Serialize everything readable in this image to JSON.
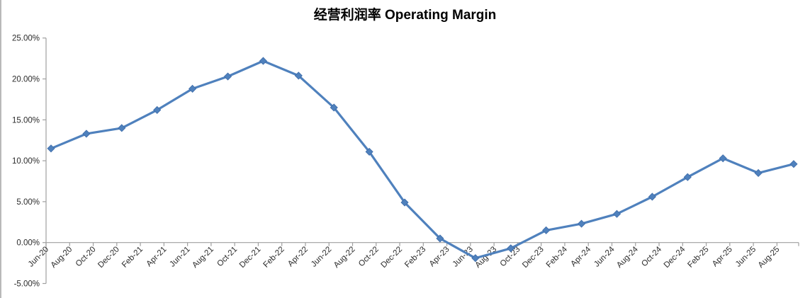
{
  "window": {
    "background": "#ffffff",
    "left_border_color": "#b9b9b9"
  },
  "chart_data": {
    "type": "line",
    "title": "经营利润率 Operating Margin",
    "xlabel": "",
    "ylabel": "",
    "legend": "none",
    "grid": false,
    "y_axis_range": [
      -5,
      25
    ],
    "y_major_unit": 5,
    "y_tick_labels": [
      "25.00%",
      "20.00%",
      "15.00%",
      "10.00%",
      "5.00%",
      "0.00%",
      "-5.00%"
    ],
    "x_tick_labels": [
      "Jun-20",
      "Aug-20",
      "Oct-20",
      "Dec-20",
      "Feb-21",
      "Apr-21",
      "Jun-21",
      "Aug-21",
      "Oct-21",
      "Dec-21",
      "Feb-22",
      "Apr-22",
      "Jun-22",
      "Aug-22",
      "Oct-22",
      "Dec-22",
      "Feb-23",
      "Apr-23",
      "Jun-23",
      "Aug-23",
      "Oct-23",
      "Dec-23",
      "Feb-24",
      "Apr-24",
      "Jun-24",
      "Aug-24",
      "Oct-24",
      "Dec-24",
      "Feb-25",
      "Apr-25",
      "Jun-25",
      "Aug-25"
    ],
    "line_color": "#4F81BD",
    "marker": "diamond",
    "axis_color": "#9f9f9f",
    "tick_label_color": "#2b2b2b",
    "series": [
      {
        "name": "Operating Margin",
        "points": [
          {
            "date": "Jun-20",
            "value": 11.5
          },
          {
            "date": "Sep-20",
            "value": 13.3
          },
          {
            "date": "Dec-20",
            "value": 14.0
          },
          {
            "date": "Mar-21",
            "value": 16.2
          },
          {
            "date": "Jun-21",
            "value": 18.8
          },
          {
            "date": "Sep-21",
            "value": 20.3
          },
          {
            "date": "Dec-21",
            "value": 22.2
          },
          {
            "date": "Mar-22",
            "value": 20.4
          },
          {
            "date": "Jun-22",
            "value": 16.5
          },
          {
            "date": "Sep-22",
            "value": 11.1
          },
          {
            "date": "Dec-22",
            "value": 4.9
          },
          {
            "date": "Mar-23",
            "value": 0.5
          },
          {
            "date": "Jun-23",
            "value": -1.9
          },
          {
            "date": "Sep-23",
            "value": -0.7
          },
          {
            "date": "Dec-23",
            "value": 1.5
          },
          {
            "date": "Mar-24",
            "value": 2.3
          },
          {
            "date": "Jun-24",
            "value": 3.5
          },
          {
            "date": "Sep-24",
            "value": 5.6
          },
          {
            "date": "Dec-24",
            "value": 8.0
          },
          {
            "date": "Mar-25",
            "value": 10.3
          },
          {
            "date": "Jun-25",
            "value": 8.5
          },
          {
            "date": "Sep-25",
            "value": 9.6
          }
        ]
      }
    ]
  }
}
